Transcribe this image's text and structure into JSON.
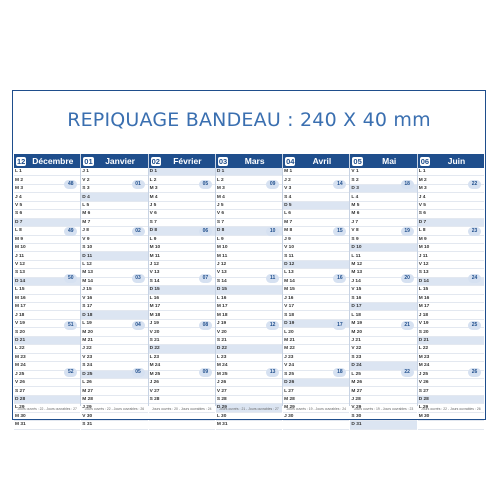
{
  "banner": {
    "text": "REPIQUAGE BANDEAU : 240 X 40 mm"
  },
  "months": [
    {
      "num": "12",
      "name": "Décembre",
      "weeks": [
        "48",
        "49",
        "50",
        "51",
        "52"
      ],
      "footer": "Jours ouvrés : 22 - Jours ouvrables : 27"
    },
    {
      "num": "01",
      "name": "Janvier",
      "weeks": [
        "01",
        "02",
        "03",
        "04",
        "05"
      ],
      "footer": "Jours ouvrés : 22 - Jours ouvrables : 26"
    },
    {
      "num": "02",
      "name": "Février",
      "weeks": [
        "05",
        "06",
        "07",
        "08",
        "09"
      ],
      "footer": "Jours ouvrés : 20 - Jours ouvrables : 24"
    },
    {
      "num": "03",
      "name": "Mars",
      "weeks": [
        "09",
        "10",
        "11",
        "12",
        "13"
      ],
      "footer": "Jours ouvrés : 21 - Jours ouvrables : 27"
    },
    {
      "num": "04",
      "name": "Avril",
      "weeks": [
        "14",
        "15",
        "16",
        "17",
        "18"
      ],
      "footer": "Jours ouvrés : 19 - Jours ouvrables : 24"
    },
    {
      "num": "05",
      "name": "Mai",
      "weeks": [
        "18",
        "19",
        "20",
        "21",
        "22"
      ],
      "footer": "Jours ouvrés : 19 - Jours ouvrables : 23"
    },
    {
      "num": "06",
      "name": "Juin",
      "weeks": [
        "22",
        "23",
        "24",
        "25",
        "26"
      ],
      "footer": "Jours ouvrés : 22 - Jours ouvrables : 26"
    }
  ]
}
